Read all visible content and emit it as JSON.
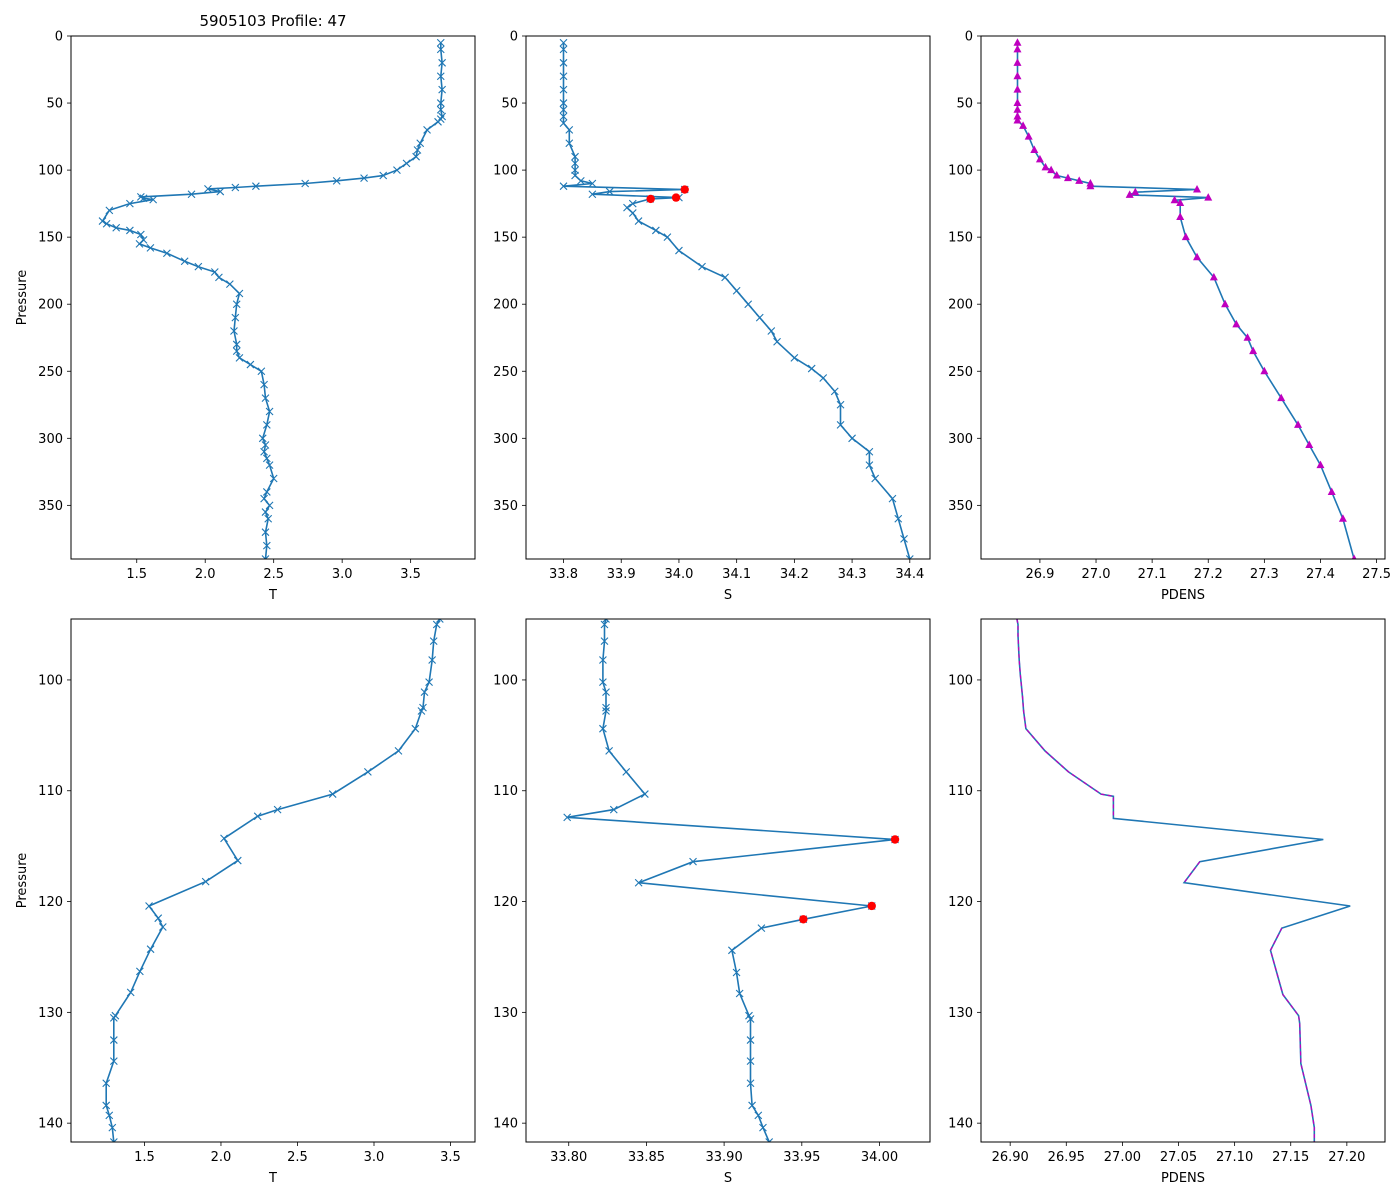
{
  "figure_title": "5905103 Profile: 47",
  "colors": {
    "line": "#1f77b4",
    "flag": "#ff0000",
    "pdens": "#bf00bf",
    "axis": "#000000"
  },
  "chart_data": [
    {
      "type": "line",
      "id": "top-t",
      "xlabel": "T",
      "ylabel": "Pressure",
      "xlim": [
        1.02,
        3.97
      ],
      "ylim": [
        390,
        0
      ],
      "marker": "x",
      "color": "#1f77b4",
      "xticks": [
        "1.5",
        "2.0",
        "2.5",
        "3.0",
        "3.5"
      ],
      "yticks": [
        "0",
        "50",
        "100",
        "150",
        "200",
        "250",
        "300",
        "350"
      ],
      "series": [
        {
          "name": "T",
          "x": [
            3.72,
            3.72,
            3.73,
            3.72,
            3.73,
            3.72,
            3.72,
            3.73,
            3.72,
            3.7,
            3.62,
            3.57,
            3.55,
            3.54,
            3.47,
            3.4,
            3.3,
            3.16,
            2.96,
            2.73,
            2.37,
            2.22,
            2.02,
            2.11,
            1.9,
            1.53,
            1.55,
            1.62,
            1.45,
            1.3,
            1.25,
            1.28,
            1.35,
            1.45,
            1.53,
            1.55,
            1.52,
            1.6,
            1.72,
            1.85,
            1.95,
            2.07,
            2.1,
            2.18,
            2.25,
            2.23,
            2.22,
            2.21,
            2.23,
            2.23,
            2.25,
            2.33,
            2.41,
            2.43,
            2.44,
            2.47,
            2.45,
            2.42,
            2.44,
            2.43,
            2.45,
            2.47,
            2.5,
            2.45,
            2.43,
            2.47,
            2.44,
            2.46,
            2.44,
            2.45,
            2.44
          ],
          "y": [
            5,
            10,
            20,
            30,
            40,
            50,
            55,
            60,
            62,
            64,
            70,
            80,
            85,
            90,
            95,
            100,
            104,
            106,
            108,
            110,
            112,
            113,
            114,
            116,
            118,
            120,
            121,
            122,
            125,
            130,
            138,
            140,
            143,
            145,
            148,
            152,
            155,
            158,
            162,
            168,
            172,
            176,
            180,
            185,
            192,
            200,
            210,
            220,
            230,
            235,
            240,
            245,
            250,
            260,
            270,
            280,
            290,
            300,
            305,
            310,
            315,
            320,
            330,
            340,
            345,
            350,
            355,
            360,
            370,
            380,
            390
          ]
        }
      ]
    },
    {
      "type": "line",
      "id": "top-s",
      "xlabel": "S",
      "ylabel": "",
      "xlim": [
        33.735,
        34.435
      ],
      "ylim": [
        390,
        0
      ],
      "marker": "x",
      "color": "#1f77b4",
      "xticks": [
        "33.8",
        "33.9",
        "34.0",
        "34.1",
        "34.2",
        "34.3",
        "34.4"
      ],
      "yticks": [
        "0",
        "50",
        "100",
        "150",
        "200",
        "250",
        "300",
        "350"
      ],
      "series": [
        {
          "name": "S",
          "x": [
            33.8,
            33.8,
            33.8,
            33.8,
            33.8,
            33.8,
            33.8,
            33.8,
            33.8,
            33.81,
            33.81,
            33.82,
            33.82,
            33.82,
            33.82,
            33.83,
            33.85,
            33.8,
            34.01,
            33.88,
            33.85,
            34.0,
            33.95,
            33.92,
            33.91,
            33.92,
            33.93,
            33.96,
            33.98,
            34.0,
            34.04,
            34.08,
            34.1,
            34.12,
            34.14,
            34.16,
            34.17,
            34.2,
            34.23,
            34.25,
            34.27,
            34.28,
            34.28,
            34.3,
            34.33,
            34.33,
            34.34,
            34.37,
            34.38,
            34.39,
            34.4
          ],
          "y": [
            5,
            10,
            20,
            30,
            40,
            50,
            55,
            60,
            65,
            70,
            80,
            90,
            95,
            100,
            104,
            108,
            110,
            112,
            114.5,
            116,
            118,
            120.5,
            121.5,
            125,
            128,
            132,
            138,
            145,
            150,
            160,
            172,
            180,
            190,
            200,
            210,
            220,
            228,
            240,
            248,
            255,
            265,
            275,
            290,
            300,
            310,
            320,
            330,
            345,
            360,
            375,
            390
          ]
        }
      ],
      "flags": {
        "x": [
          34.01,
          33.995,
          33.951
        ],
        "y": [
          114.5,
          120.5,
          121.5
        ]
      }
    },
    {
      "type": "line",
      "id": "top-pdens",
      "xlabel": "PDENS",
      "ylabel": "",
      "xlim": [
        26.795,
        27.515
      ],
      "ylim": [
        390,
        0
      ],
      "marker": "triangle",
      "color": "#bf00bf",
      "xticks": [
        "26.9",
        "27.0",
        "27.1",
        "27.2",
        "27.3",
        "27.4",
        "27.5"
      ],
      "yticks": [
        "0",
        "50",
        "100",
        "150",
        "200",
        "250",
        "300",
        "350"
      ],
      "series": [
        {
          "name": "PDENS",
          "x": [
            26.86,
            26.86,
            26.86,
            26.86,
            26.86,
            26.86,
            26.86,
            26.86,
            26.86,
            26.87,
            26.88,
            26.89,
            26.9,
            26.91,
            26.92,
            26.93,
            26.95,
            26.97,
            26.99,
            26.99,
            27.18,
            27.07,
            27.06,
            27.2,
            27.14,
            27.15,
            27.15,
            27.16,
            27.18,
            27.21,
            27.23,
            27.25,
            27.27,
            27.28,
            27.3,
            27.33,
            27.36,
            27.38,
            27.4,
            27.42,
            27.44,
            27.46
          ],
          "y": [
            5,
            10,
            20,
            30,
            40,
            50,
            55,
            60,
            63,
            67,
            75,
            85,
            92,
            98,
            100,
            104,
            106,
            108,
            110,
            112,
            114.5,
            116.5,
            118.5,
            120.5,
            122.5,
            124.5,
            135,
            150,
            165,
            180,
            200,
            215,
            225,
            235,
            250,
            270,
            290,
            305,
            320,
            340,
            360,
            390
          ]
        }
      ]
    },
    {
      "type": "line",
      "id": "bottom-t",
      "xlabel": "T",
      "ylabel": "Pressure",
      "xlim": [
        1.02,
        3.66
      ],
      "ylim": [
        141.7,
        94.5
      ],
      "marker": "x",
      "color": "#1f77b4",
      "xticks": [
        "1.5",
        "2.0",
        "2.5",
        "3.0",
        "3.5"
      ],
      "yticks": [
        "100",
        "110",
        "120",
        "130",
        "140"
      ],
      "series": [
        {
          "name": "T",
          "x": [
            3.43,
            3.41,
            3.39,
            3.38,
            3.36,
            3.33,
            3.32,
            3.31,
            3.27,
            3.16,
            2.96,
            2.73,
            2.37,
            2.24,
            2.02,
            2.11,
            1.9,
            1.53,
            1.59,
            1.62,
            1.54,
            1.47,
            1.41,
            1.31,
            1.3,
            1.3,
            1.3,
            1.25,
            1.25,
            1.27,
            1.29,
            1.3
          ],
          "y": [
            94.5,
            95,
            96.5,
            98.2,
            100.2,
            101.1,
            102.5,
            102.8,
            104.4,
            106.4,
            108.3,
            110.3,
            111.7,
            112.3,
            114.3,
            116.3,
            118.2,
            120.4,
            121.5,
            122.3,
            124.3,
            126.3,
            128.2,
            130.3,
            130.5,
            132.5,
            134.4,
            136.4,
            138.4,
            139.3,
            140.4,
            141.7
          ]
        }
      ]
    },
    {
      "type": "line",
      "id": "bottom-s",
      "xlabel": "S",
      "ylabel": "",
      "xlim": [
        33.7725,
        34.0325
      ],
      "ylim": [
        141.7,
        94.5
      ],
      "marker": "x",
      "color": "#1f77b4",
      "xticks": [
        "33.80",
        "33.85",
        "33.90",
        "33.95",
        "34.00"
      ],
      "yticks": [
        "100",
        "110",
        "120",
        "130",
        "140"
      ],
      "series": [
        {
          "name": "S",
          "x": [
            33.824,
            33.823,
            33.823,
            33.822,
            33.822,
            33.824,
            33.824,
            33.824,
            33.822,
            33.826,
            33.837,
            33.849,
            33.829,
            33.799,
            34.01,
            33.88,
            33.845,
            33.995,
            33.951,
            33.924,
            33.905,
            33.908,
            33.91,
            33.916,
            33.917,
            33.917,
            33.917,
            33.917,
            33.918,
            33.922,
            33.925,
            33.929
          ],
          "y": [
            94.5,
            95,
            96.5,
            98.2,
            100.2,
            101.1,
            102.5,
            102.8,
            104.4,
            106.4,
            108.3,
            110.3,
            111.7,
            112.4,
            114.4,
            116.4,
            118.3,
            120.4,
            121.6,
            122.4,
            124.4,
            126.4,
            128.3,
            130.3,
            130.6,
            132.5,
            134.4,
            136.4,
            138.4,
            139.3,
            140.4,
            141.7
          ]
        }
      ],
      "flags": {
        "x": [
          34.01,
          33.995,
          33.951
        ],
        "y": [
          114.4,
          120.4,
          121.6
        ]
      }
    },
    {
      "type": "line",
      "id": "bottom-pdens",
      "xlabel": "PDENS",
      "ylabel": "",
      "xlim": [
        26.874,
        27.234
      ],
      "ylim": [
        141.7,
        94.5
      ],
      "marker": "none",
      "color": "#1f77b4",
      "xticks": [
        "26.90",
        "26.95",
        "27.00",
        "27.05",
        "27.10",
        "27.15",
        "27.20"
      ],
      "yticks": [
        "100",
        "110",
        "120",
        "130",
        "140"
      ],
      "series": [
        {
          "name": "PDENS",
          "x": [
            26.906,
            26.907,
            26.907,
            26.908,
            26.909,
            26.91,
            26.911,
            26.912,
            26.914,
            26.931,
            26.952,
            26.981,
            26.992,
            26.992,
            26.992,
            27.179,
            27.069,
            27.055,
            27.203,
            27.142,
            27.132,
            27.143,
            27.157,
            27.158,
            27.159,
            27.159,
            27.168,
            27.171,
            27.171
          ],
          "y": [
            94.5,
            95,
            96,
            98.2,
            99.5,
            100.5,
            101.5,
            102.8,
            104.4,
            106.4,
            108.3,
            110.3,
            110.5,
            112.3,
            112.5,
            114.4,
            116.4,
            118.3,
            120.4,
            122.4,
            124.4,
            128.4,
            130.3,
            131,
            134.4,
            134.6,
            138.4,
            140.4,
            141.7
          ]
        }
      ],
      "overlay": {
        "x": [
          26.906,
          26.907,
          26.907,
          26.908,
          26.909,
          26.91,
          26.911,
          26.912,
          26.914,
          26.931,
          26.952,
          26.981,
          26.992,
          26.992,
          26.992
        ],
        "y": [
          94.5,
          95,
          96,
          98.2,
          99.5,
          100.5,
          101.5,
          102.8,
          104.4,
          106.4,
          108.3,
          110.3,
          110.5,
          112.3,
          112.5
        ],
        "x2": [
          27.069,
          27.055
        ],
        "y2": [
          116.4,
          118.3
        ],
        "x3": [
          27.142,
          27.132,
          27.143,
          27.157,
          27.158,
          27.159,
          27.159,
          27.168,
          27.171,
          27.171
        ],
        "y3": [
          122.4,
          124.4,
          128.4,
          130.3,
          131,
          134.4,
          134.6,
          138.4,
          140.4,
          141.7
        ]
      }
    }
  ]
}
